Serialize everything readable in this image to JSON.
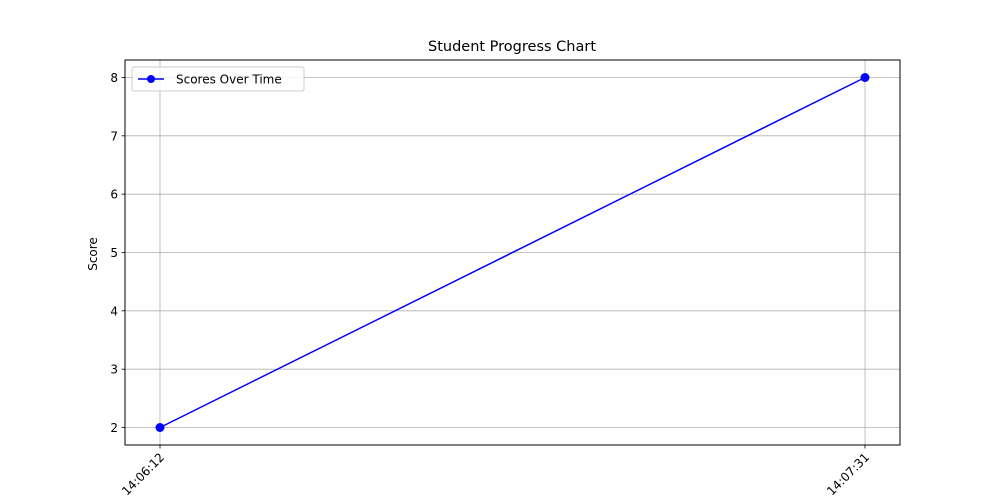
{
  "chart_data": {
    "type": "line",
    "title": "Student Progress Chart",
    "xlabel": "",
    "ylabel": "Score",
    "categories": [
      "14:06:12",
      "14:07:31"
    ],
    "series": [
      {
        "name": "Scores Over Time",
        "values": [
          2,
          8
        ],
        "color": "#0000ff",
        "marker": "circle"
      }
    ],
    "ylim": [
      1.7,
      8.3
    ],
    "yticks": [
      2,
      3,
      4,
      5,
      6,
      7,
      8
    ],
    "grid": true,
    "legend_position": "top-left"
  }
}
